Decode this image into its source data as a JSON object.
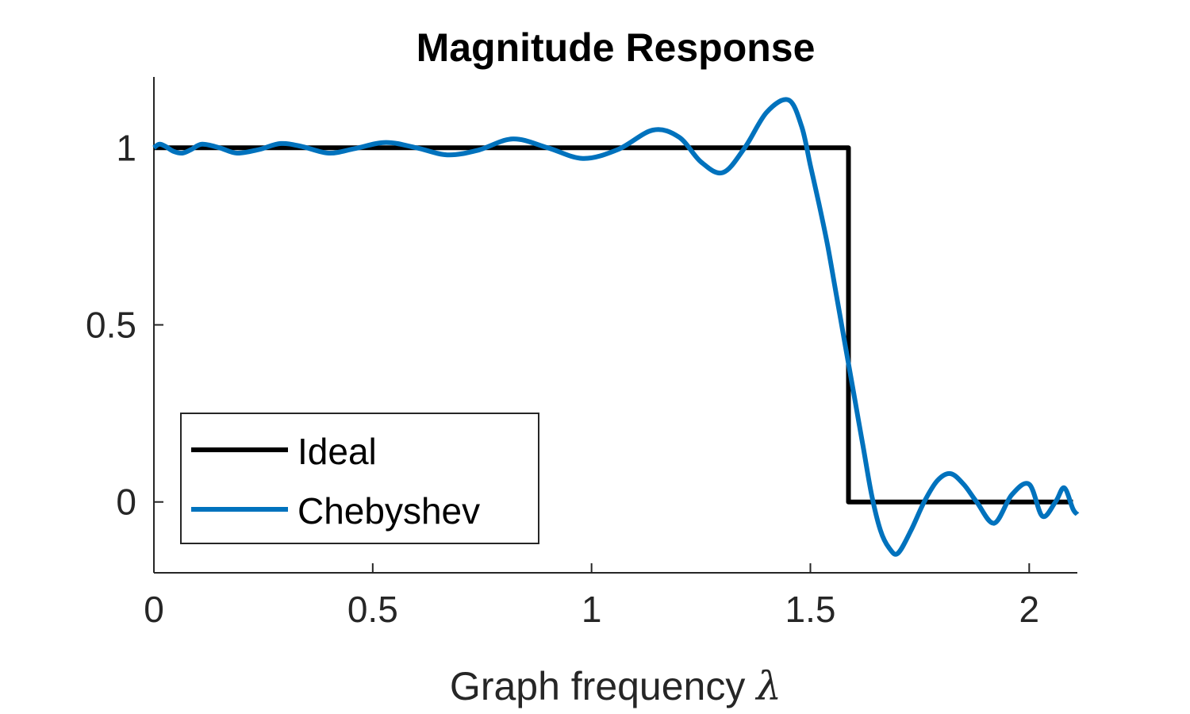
{
  "chart_data": {
    "type": "line",
    "title": "Magnitude Response",
    "xlabel": "Graph frequency",
    "xlabel_symbol": "λ",
    "ylabel": "",
    "xlim": [
      0,
      2.11
    ],
    "ylim": [
      -0.2,
      1.2
    ],
    "xticks": [
      0,
      0.5,
      1,
      1.5,
      2
    ],
    "xtick_labels": [
      "0",
      "0.5",
      "1",
      "1.5",
      "2"
    ],
    "yticks": [
      0,
      0.5,
      1
    ],
    "ytick_labels": [
      "0",
      "0.5",
      "1"
    ],
    "grid": false,
    "legend_position": "bottom-left",
    "series": [
      {
        "name": "Ideal",
        "color": "#000000",
        "x": [
          0,
          1.587,
          1.587,
          2.1
        ],
        "y": [
          1,
          1,
          0,
          0
        ]
      },
      {
        "name": "Chebyshev",
        "color": "#0072BD",
        "x": [
          0,
          0.012,
          0.025,
          0.045,
          0.065,
          0.085,
          0.11,
          0.15,
          0.19,
          0.24,
          0.29,
          0.34,
          0.4,
          0.46,
          0.53,
          0.6,
          0.67,
          0.74,
          0.82,
          0.9,
          0.98,
          1.06,
          1.14,
          1.2,
          1.25,
          1.3,
          1.35,
          1.4,
          1.45,
          1.48,
          1.5,
          1.52,
          1.54,
          1.56,
          1.58,
          1.6,
          1.62,
          1.64,
          1.66,
          1.68,
          1.7,
          1.73,
          1.76,
          1.79,
          1.82,
          1.85,
          1.88,
          1.92,
          1.96,
          2.0,
          2.03,
          2.06,
          2.08,
          2.1,
          2.11
        ],
        "y": [
          1.0,
          1.01,
          1.005,
          0.99,
          0.985,
          0.995,
          1.01,
          1.0,
          0.985,
          0.995,
          1.012,
          1.003,
          0.985,
          0.998,
          1.015,
          1.0,
          0.98,
          0.993,
          1.025,
          1.0,
          0.97,
          0.995,
          1.05,
          1.03,
          0.96,
          0.93,
          1.0,
          1.1,
          1.135,
          1.06,
          0.95,
          0.84,
          0.72,
          0.58,
          0.44,
          0.3,
          0.16,
          0.02,
          -0.08,
          -0.13,
          -0.145,
          -0.08,
          0.0,
          0.06,
          0.08,
          0.05,
          0.0,
          -0.06,
          0.02,
          0.05,
          -0.04,
          0.0,
          0.04,
          -0.02,
          -0.035
        ]
      }
    ]
  }
}
